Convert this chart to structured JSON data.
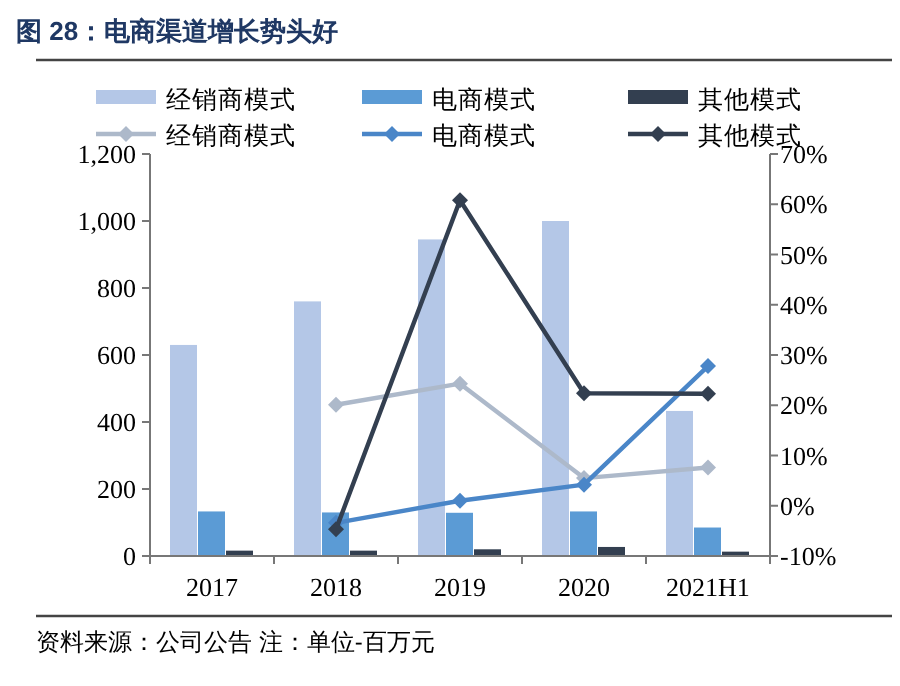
{
  "chart_data": {
    "type": "bar",
    "title": "图 28：电商渠道增长势头好",
    "categories": [
      "2017",
      "2018",
      "2019",
      "2020",
      "2021H1"
    ],
    "series": [
      {
        "name": "经销商模式",
        "color": "#b4c7e7",
        "values": [
          630,
          760,
          945,
          1000,
          433
        ]
      },
      {
        "name": "电商模式",
        "color": "#5b9bd5",
        "values": [
          133,
          130,
          129,
          133,
          85
        ]
      },
      {
        "name": "其他模式",
        "color": "#333f50",
        "values": [
          16,
          16,
          20,
          27,
          13
        ]
      },
      {
        "name": "经销商模式",
        "type": "line",
        "axis": "y2",
        "color": "#adb9ca",
        "values": [
          null,
          20.1,
          24.3,
          5.5,
          7.6
        ]
      },
      {
        "name": "电商模式",
        "type": "line",
        "axis": "y2",
        "color": "#4a86c8",
        "values": [
          null,
          -3.4,
          1.0,
          4.2,
          27.8
        ]
      },
      {
        "name": "其他模式",
        "type": "line",
        "axis": "y2",
        "color": "#333f50",
        "values": [
          null,
          -4.7,
          60.8,
          22.4,
          22.3
        ]
      }
    ],
    "ylim": [
      0,
      1200
    ],
    "yticks": [
      0,
      200,
      400,
      600,
      800,
      {
        "value": 1000,
        "label": "1,000"
      },
      {
        "value": 1200,
        "label": "1,200"
      }
    ],
    "y2lim": [
      -10,
      70
    ],
    "y2ticks": [
      {
        "value": -10,
        "label": "-10%"
      },
      {
        "value": 0,
        "label": "0%"
      },
      {
        "value": 10,
        "label": "10%"
      },
      {
        "value": 20,
        "label": "20%"
      },
      {
        "value": 30,
        "label": "30%"
      },
      {
        "value": 40,
        "label": "40%"
      },
      {
        "value": 50,
        "label": "50%"
      },
      {
        "value": 60,
        "label": "60%"
      },
      {
        "value": 70,
        "label": "70%"
      }
    ],
    "marker": "diamond",
    "legend": "top",
    "grid": false,
    "annotations": [
      "资料来源：公司公告 注：单位-百万元"
    ]
  }
}
